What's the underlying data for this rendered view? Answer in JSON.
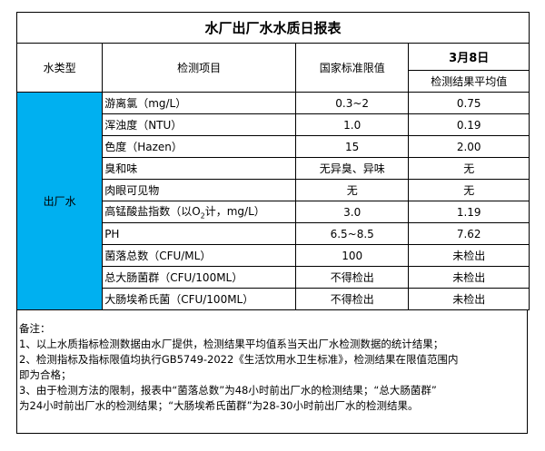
{
  "title": "水厂出厂水水质日报表",
  "headers": {
    "water_type": "水类型",
    "item": "检测项目",
    "standard": "国家标准限值",
    "date": "3月8日",
    "result": "检测结果平均值"
  },
  "water_type_value": "出厂水",
  "water_type_color": "#00b0f0",
  "rows": [
    {
      "item": "游离氯（mg/L）",
      "standard": "0.3~2",
      "result": "0.75"
    },
    {
      "item": "浑浊度（NTU）",
      "standard": "1.0",
      "result": "0.19"
    },
    {
      "item": "色度（Hazen）",
      "standard": "15",
      "result": "2.00"
    },
    {
      "item": "臭和味",
      "standard": "无异臭、异味",
      "result": "无"
    },
    {
      "item": "肉眼可见物",
      "standard": "无",
      "result": "无"
    },
    {
      "item": "高锰酸盐指数（以O",
      "item_sub": "2",
      "item_suffix": "计，mg/L）",
      "standard": "3.0",
      "result": "1.19"
    },
    {
      "item": "PH",
      "standard": "6.5~8.5",
      "result": "7.62"
    },
    {
      "item": "菌落总数（CFU/ML）",
      "standard": "100",
      "result": "未检出"
    },
    {
      "item": "总大肠菌群（CFU/100ML）",
      "standard": "不得检出",
      "result": "未检出"
    },
    {
      "item": "大肠埃希氏菌（CFU/100ML）",
      "standard": "不得检出",
      "result": "未检出"
    }
  ],
  "notes": {
    "heading": "备注：",
    "lines": [
      "1、以上水质指标检测数据由水厂提供，检测结果平均值系当天出厂水检测数据的统计结果；",
      "2、检测指标及指标限值均执行GB5749-2022《生活饮用水卫生标准》，检测结果在限值范围内",
      "即为合格；",
      "3、由于检测方法的限制，报表中“菌落总数”为48小时前出厂水的检测结果；“总大肠菌群”",
      "为24小时前出厂水的检测结果；“大肠埃希氏菌群”为28-30小时前出厂水的检测结果。"
    ]
  }
}
